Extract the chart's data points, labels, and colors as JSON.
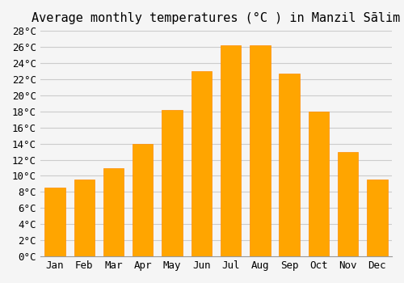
{
  "title": "Average monthly temperatures (°C ) in Manzil Sālim",
  "months": [
    "Jan",
    "Feb",
    "Mar",
    "Apr",
    "May",
    "Jun",
    "Jul",
    "Aug",
    "Sep",
    "Oct",
    "Nov",
    "Dec"
  ],
  "values": [
    8.5,
    9.5,
    11.0,
    14.0,
    18.2,
    23.0,
    26.2,
    26.2,
    22.7,
    18.0,
    13.0,
    9.5
  ],
  "bar_color": "#FFA500",
  "bar_edge_color": "#FF8C00",
  "background_color": "#F5F5F5",
  "grid_color": "#CCCCCC",
  "ylim": [
    0,
    28
  ],
  "yticks": [
    0,
    2,
    4,
    6,
    8,
    10,
    12,
    14,
    16,
    18,
    20,
    22,
    24,
    26,
    28
  ],
  "title_fontsize": 11,
  "tick_fontsize": 9,
  "font_family": "monospace"
}
